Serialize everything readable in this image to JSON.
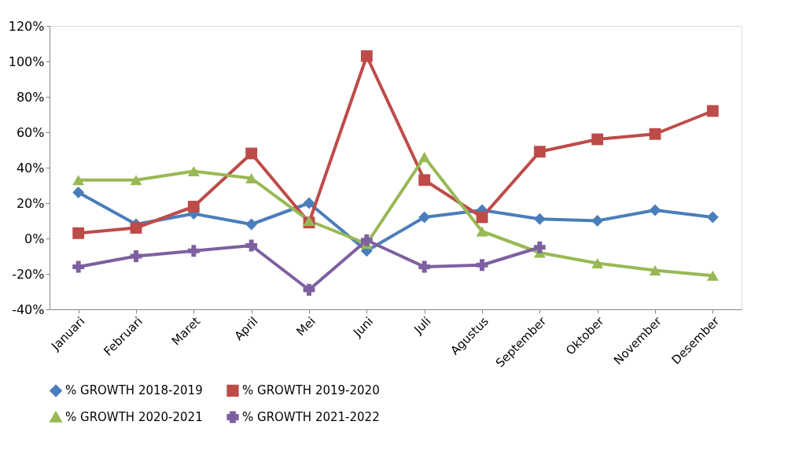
{
  "chart_data": {
    "type": "line",
    "categories": [
      "Januari",
      "Februari",
      "Maret",
      "April",
      "Mei",
      "Juni",
      "Juli",
      "Agustus",
      "September",
      "Oktober",
      "November",
      "Desember"
    ],
    "series": [
      {
        "name": "% GROWTH 2018-2019",
        "color": "#4a7ebb",
        "marker": "diamond",
        "values": [
          26,
          8,
          14,
          8,
          20,
          -7,
          12,
          16,
          11,
          10,
          16,
          12
        ]
      },
      {
        "name": "% GROWTH 2019-2020",
        "color": "#be4b48",
        "marker": "square",
        "values": [
          3,
          6,
          18,
          48,
          9,
          103,
          33,
          12,
          49,
          56,
          59,
          72
        ]
      },
      {
        "name": "% GROWTH 2020-2021",
        "color": "#98b954",
        "marker": "triangle",
        "values": [
          33,
          33,
          38,
          34,
          10,
          -3,
          46,
          4,
          -8,
          -14,
          -18,
          -21
        ]
      },
      {
        "name": "% GROWTH 2021-2022",
        "color": "#7d60a0",
        "marker": "cross",
        "values": [
          -16,
          -10,
          -7,
          -4,
          -29,
          -1,
          -16,
          -15,
          -5,
          null,
          null,
          null
        ]
      }
    ],
    "ylim": [
      -40,
      120
    ],
    "yticks": [
      {
        "value": -40,
        "label": "-40%"
      },
      {
        "value": -20,
        "label": "-20%"
      },
      {
        "value": 0,
        "label": "0%"
      },
      {
        "value": 20,
        "label": "20%"
      },
      {
        "value": 40,
        "label": "40%"
      },
      {
        "value": 60,
        "label": "60%"
      },
      {
        "value": 80,
        "label": "80%"
      },
      {
        "value": 100,
        "label": "100%"
      },
      {
        "value": 120,
        "label": "120%"
      }
    ],
    "grid": false,
    "legend": "bottom",
    "line_style": "solid"
  }
}
